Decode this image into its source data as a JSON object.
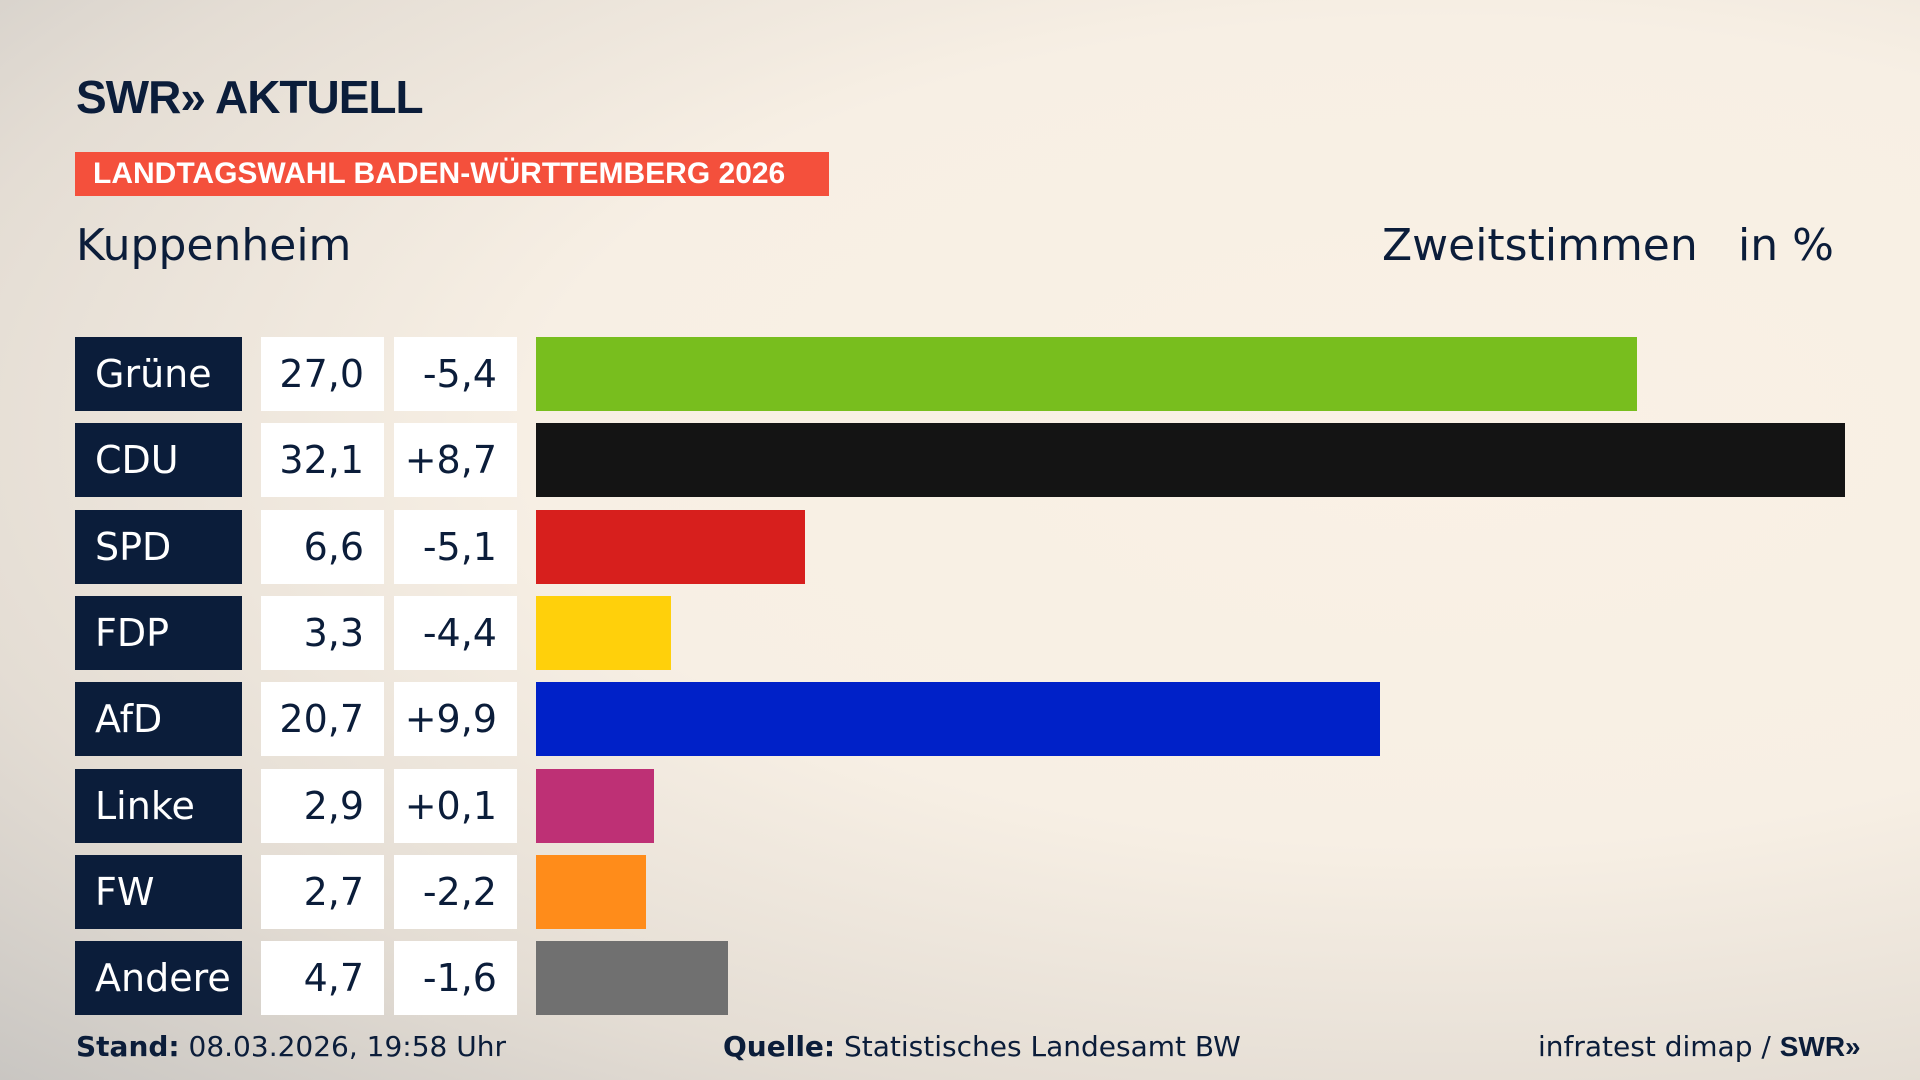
{
  "header": {
    "logo": "SWR» AKTUELL",
    "banner": "LANDTAGSWAHL BADEN-WÜRTTEMBERG 2026",
    "place": "Kuppenheim",
    "mode": "Zweitstimmen",
    "unit": "in %"
  },
  "chart_data": {
    "type": "bar",
    "orientation": "horizontal",
    "categories": [
      "Grüne",
      "CDU",
      "SPD",
      "FDP",
      "AfD",
      "Linke",
      "FW",
      "Andere"
    ],
    "values": [
      27.0,
      32.1,
      6.6,
      3.3,
      20.7,
      2.9,
      2.7,
      4.7
    ],
    "value_labels": [
      "27,0",
      "32,1",
      "6,6",
      "3,3",
      "20,7",
      "2,9",
      "2,7",
      "4,7"
    ],
    "diff_labels": [
      "-5,4",
      "+8,7",
      "-5,1",
      "-4,4",
      "+9,9",
      "+0,1",
      "-2,2",
      "-1,6"
    ],
    "colors": [
      "#78be1e",
      "#141414",
      "#d71f1d",
      "#ffd00b",
      "#0021c8",
      "#be3075",
      "#ff8c1a",
      "#707070"
    ],
    "xlim": [
      0,
      32.1
    ],
    "grid": false
  },
  "footer": {
    "stand_label": "Stand:",
    "stand_value": "08.03.2026, 19:58 Uhr",
    "source_label": "Quelle:",
    "source_value": "Statistisches Landesamt BW",
    "credit": "infratest dimap / ",
    "credit_logo": "SWR»"
  }
}
